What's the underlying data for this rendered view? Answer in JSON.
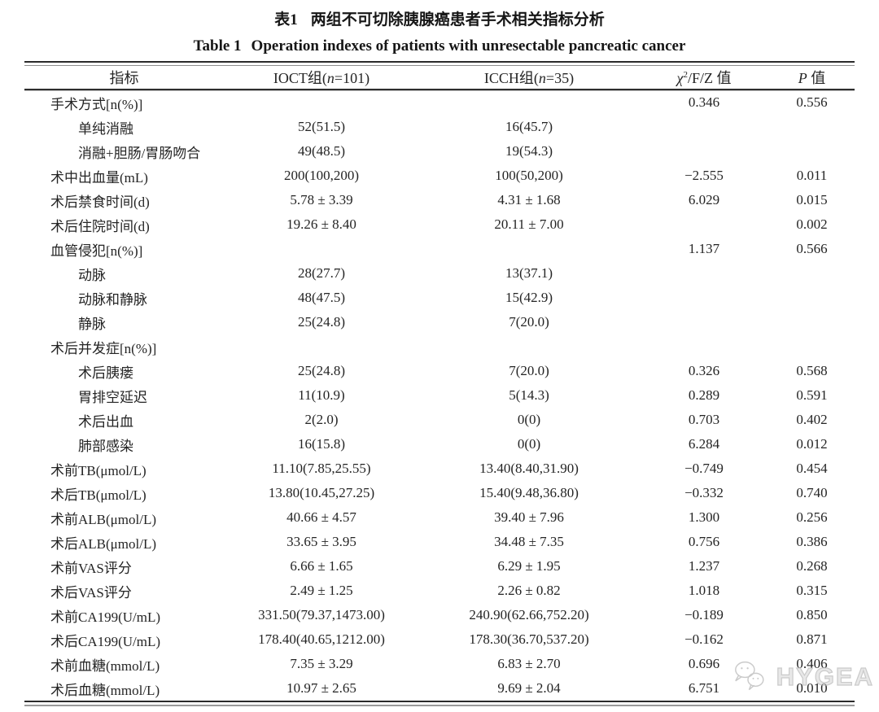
{
  "titles": {
    "zh_label": "表1",
    "zh_text": "两组不可切除胰腺癌患者手术相关指标分析",
    "en_label": "Table 1",
    "en_text": "Operation indexes of patients with unresectable pancreatic cancer"
  },
  "table": {
    "header": {
      "col1": "指标",
      "col2": {
        "pre": "IOCT组(",
        "n": "n",
        "post": "=101)"
      },
      "col3": {
        "pre": "ICCH组(",
        "n": "n",
        "post": "=35)"
      },
      "col4": {
        "chi": "χ",
        "sup": "2",
        "post": "/F/Z 值"
      },
      "col5": {
        "p": "P",
        "post": " 值"
      }
    },
    "rows": [
      {
        "label": "手术方式[n(%)]",
        "indent": false,
        "ioct": "",
        "icch": "",
        "stat": "0.346",
        "p": "0.556"
      },
      {
        "label": "单纯消融",
        "indent": true,
        "ioct": "52(51.5)",
        "icch": "16(45.7)",
        "stat": "",
        "p": ""
      },
      {
        "label": "消融+胆肠/胃肠吻合",
        "indent": true,
        "ioct": "49(48.5)",
        "icch": "19(54.3)",
        "stat": "",
        "p": ""
      },
      {
        "label": "术中出血量(mL)",
        "indent": false,
        "ioct": "200(100,200)",
        "icch": "100(50,200)",
        "stat": "−2.555",
        "p": "0.011"
      },
      {
        "label": "术后禁食时间(d)",
        "indent": false,
        "ioct": "5.78 ± 3.39",
        "icch": "4.31 ± 1.68",
        "stat": "6.029",
        "p": "0.015"
      },
      {
        "label": "术后住院时间(d)",
        "indent": false,
        "ioct": "19.26 ± 8.40",
        "icch": "20.11 ± 7.00",
        "stat": "",
        "p": "0.002"
      },
      {
        "label": "血管侵犯[n(%)]",
        "indent": false,
        "ioct": "",
        "icch": "",
        "stat": "1.137",
        "p": "0.566"
      },
      {
        "label": "动脉",
        "indent": true,
        "ioct": "28(27.7)",
        "icch": "13(37.1)",
        "stat": "",
        "p": ""
      },
      {
        "label": "动脉和静脉",
        "indent": true,
        "ioct": "48(47.5)",
        "icch": "15(42.9)",
        "stat": "",
        "p": ""
      },
      {
        "label": "静脉",
        "indent": true,
        "ioct": "25(24.8)",
        "icch": "7(20.0)",
        "stat": "",
        "p": ""
      },
      {
        "label": "术后并发症[n(%)]",
        "indent": false,
        "ioct": "",
        "icch": "",
        "stat": "",
        "p": ""
      },
      {
        "label": "术后胰瘘",
        "indent": true,
        "ioct": "25(24.8)",
        "icch": "7(20.0)",
        "stat": "0.326",
        "p": "0.568"
      },
      {
        "label": "胃排空延迟",
        "indent": true,
        "ioct": "11(10.9)",
        "icch": "5(14.3)",
        "stat": "0.289",
        "p": "0.591"
      },
      {
        "label": "术后出血",
        "indent": true,
        "ioct": "2(2.0)",
        "icch": "0(0)",
        "stat": "0.703",
        "p": "0.402"
      },
      {
        "label": "肺部感染",
        "indent": true,
        "ioct": "16(15.8)",
        "icch": "0(0)",
        "stat": "6.284",
        "p": "0.012"
      },
      {
        "label": "术前TB(μmol/L)",
        "indent": false,
        "ioct": "11.10(7.85,25.55)",
        "icch": "13.40(8.40,31.90)",
        "stat": "−0.749",
        "p": "0.454"
      },
      {
        "label": "术后TB(μmol/L)",
        "indent": false,
        "ioct": "13.80(10.45,27.25)",
        "icch": "15.40(9.48,36.80)",
        "stat": "−0.332",
        "p": "0.740"
      },
      {
        "label": "术前ALB(μmol/L)",
        "indent": false,
        "ioct": "40.66 ± 4.57",
        "icch": "39.40 ± 7.96",
        "stat": "1.300",
        "p": "0.256"
      },
      {
        "label": "术后ALB(μmol/L)",
        "indent": false,
        "ioct": "33.65 ± 3.95",
        "icch": "34.48 ± 7.35",
        "stat": "0.756",
        "p": "0.386"
      },
      {
        "label": "术前VAS评分",
        "indent": false,
        "ioct": "6.66 ± 1.65",
        "icch": "6.29 ± 1.95",
        "stat": "1.237",
        "p": "0.268"
      },
      {
        "label": "术后VAS评分",
        "indent": false,
        "ioct": "2.49 ± 1.25",
        "icch": "2.26 ± 0.82",
        "stat": "1.018",
        "p": "0.315"
      },
      {
        "label": "术前CA199(U/mL)",
        "indent": false,
        "ioct": "331.50(79.37,1473.00)",
        "icch": "240.90(62.66,752.20)",
        "stat": "−0.189",
        "p": "0.850"
      },
      {
        "label": "术后CA199(U/mL)",
        "indent": false,
        "ioct": "178.40(40.65,1212.00)",
        "icch": "178.30(36.70,537.20)",
        "stat": "−0.162",
        "p": "0.871"
      },
      {
        "label": "术前血糖(mmol/L)",
        "indent": false,
        "ioct": "7.35 ± 3.29",
        "icch": "6.83 ± 2.70",
        "stat": "0.696",
        "p": "0.406"
      },
      {
        "label": "术后血糖(mmol/L)",
        "indent": false,
        "ioct": "10.97 ± 2.65",
        "icch": "9.69 ± 2.04",
        "stat": "6.751",
        "p": "0.010"
      }
    ]
  },
  "watermark": {
    "text": "HYGEA",
    "icon": "wechat-icon"
  }
}
